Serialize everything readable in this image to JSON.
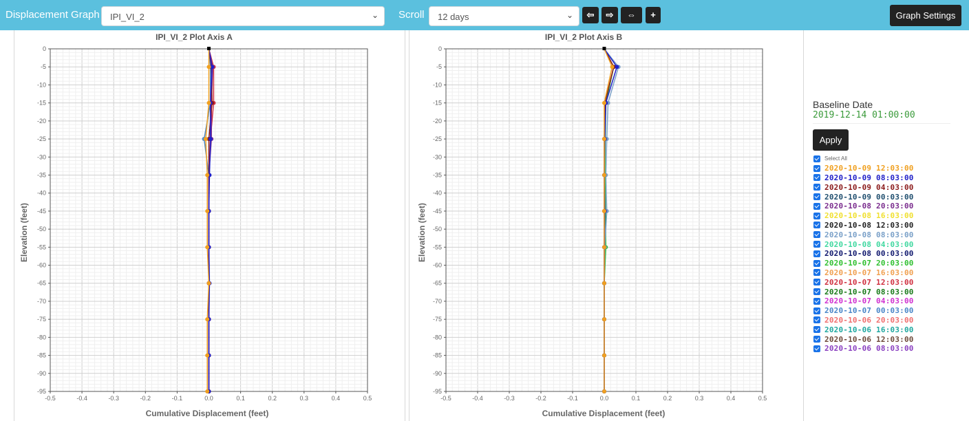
{
  "toolbar": {
    "title": "Displacement Graph",
    "sensor_select": "IPI_VI_2",
    "scroll_label": "Scroll",
    "scroll_select": "12 days",
    "nav_buttons": [
      "⇦",
      "⇨",
      "⇔",
      "+"
    ],
    "graph_settings": "Graph Settings"
  },
  "plots": [
    {
      "title": "IPI_VI_2 Plot Axis A",
      "xlabel": "Cumulative Displacement (feet)",
      "ylabel": "Elevation (feet)",
      "xticks": [
        "-0.5",
        "-0.4",
        "-0.3",
        "-0.2",
        "-0.1",
        "0.0",
        "0.1",
        "0.2",
        "0.3",
        "0.4",
        "0.5"
      ],
      "yticks": [
        "0",
        "-5",
        "-10",
        "-15",
        "-20",
        "-25",
        "-30",
        "-35",
        "-40",
        "-45",
        "-50",
        "-55",
        "-60",
        "-65",
        "-70",
        "-75",
        "-80",
        "-85",
        "-90",
        "-95"
      ]
    },
    {
      "title": "IPI_VI_2 Plot Axis B",
      "xlabel": "Cumulative Displacement (feet)",
      "ylabel": "Elevation (feet)",
      "xticks": [
        "-0.5",
        "-0.4",
        "-0.3",
        "-0.2",
        "-0.1",
        "0.0",
        "0.1",
        "0.2",
        "0.3",
        "0.4",
        "0.5"
      ],
      "yticks": [
        "0",
        "-5",
        "-10",
        "-15",
        "-20",
        "-25",
        "-30",
        "-35",
        "-40",
        "-45",
        "-50",
        "-55",
        "-60",
        "-65",
        "-70",
        "-75",
        "-80",
        "-85",
        "-90",
        "-95"
      ]
    }
  ],
  "chart_data": [
    {
      "type": "line",
      "title": "IPI_VI_2 Plot Axis A",
      "xlabel": "Cumulative Displacement (feet)",
      "ylabel": "Elevation (feet)",
      "xlim": [
        -0.5,
        0.5
      ],
      "ylim": [
        -95,
        0
      ],
      "grid": true,
      "series": [
        {
          "name": "2020-10-09 12:03:00",
          "color": "#f0a020",
          "x": [
            0.0,
            0.0,
            0.0,
            -0.01,
            -0.005,
            -0.005,
            -0.005,
            0.0,
            -0.005,
            -0.005,
            -0.005
          ],
          "y": [
            0,
            -5,
            -15,
            -25,
            -35,
            -45,
            -55,
            -65,
            -75,
            -85,
            -95
          ]
        },
        {
          "name": "2020-10-09 08:03:00",
          "color": "#2020c8",
          "x": [
            0.0,
            0.01,
            0.005,
            0.005,
            0.002,
            0.0,
            0.0,
            0.002,
            0.0,
            0.0,
            0.0
          ],
          "y": [
            0,
            -5,
            -15,
            -25,
            -35,
            -45,
            -55,
            -65,
            -75,
            -85,
            -95
          ]
        },
        {
          "name": "2020-10-09 04:03:00",
          "color": "#8b1a1a",
          "x": [
            0.0,
            0.008,
            0.01,
            0.0,
            0.0,
            0.0,
            0.0,
            0.0,
            0.0,
            0.0,
            0.0
          ],
          "y": [
            0,
            -5,
            -15,
            -25,
            -35,
            -45,
            -55,
            -65,
            -75,
            -85,
            -95
          ]
        },
        {
          "name": "2020-10-08 20:03:00",
          "color": "#7b2d8e",
          "x": [
            0.0,
            0.012,
            0.008,
            0.008,
            0.0,
            0.0,
            0.0,
            0.0,
            0.0,
            0.0,
            0.0
          ],
          "y": [
            0,
            -5,
            -15,
            -25,
            -35,
            -45,
            -55,
            -65,
            -75,
            -85,
            -95
          ]
        },
        {
          "name": "2020-10-07 12:03:00",
          "color": "#d03040",
          "x": [
            0.0,
            0.015,
            0.015,
            0.005,
            0.0,
            0.0,
            0.0,
            0.0,
            0.0,
            0.0,
            0.0
          ],
          "y": [
            0,
            -5,
            -15,
            -25,
            -35,
            -45,
            -55,
            -65,
            -75,
            -85,
            -95
          ]
        },
        {
          "name": "2020-10-07 00:03:00",
          "color": "#4a86c8",
          "x": [
            0.0,
            0.005,
            0.005,
            -0.015,
            0.0,
            0.0,
            0.0,
            0.0,
            0.0,
            0.0,
            0.0
          ],
          "y": [
            0,
            -5,
            -15,
            -25,
            -35,
            -45,
            -55,
            -65,
            -75,
            -85,
            -95
          ]
        }
      ]
    },
    {
      "type": "line",
      "title": "IPI_VI_2 Plot Axis B",
      "xlabel": "Cumulative Displacement (feet)",
      "ylabel": "Elevation (feet)",
      "xlim": [
        -0.5,
        0.5
      ],
      "ylim": [
        -95,
        0
      ],
      "grid": true,
      "series": [
        {
          "name": "2020-10-09 12:03:00",
          "color": "#f0a020",
          "x": [
            0.0,
            0.025,
            0.0,
            0.0,
            0.0,
            0.0,
            0.0,
            0.0,
            0.0,
            0.0,
            0.0
          ],
          "y": [
            0,
            -5,
            -15,
            -25,
            -35,
            -45,
            -55,
            -65,
            -75,
            -85,
            -95
          ]
        },
        {
          "name": "2020-10-09 08:03:00",
          "color": "#2020c8",
          "x": [
            0.0,
            0.04,
            0.005,
            0.002,
            0.0,
            0.002,
            0.0,
            0.0,
            0.0,
            0.0,
            0.0
          ],
          "y": [
            0,
            -5,
            -15,
            -25,
            -35,
            -45,
            -55,
            -65,
            -75,
            -85,
            -95
          ]
        },
        {
          "name": "2020-10-09 04:03:00",
          "color": "#8b1a1a",
          "x": [
            0.0,
            0.03,
            0.002,
            0.0,
            0.0,
            0.0,
            0.0,
            0.0,
            0.0,
            0.0,
            0.0
          ],
          "y": [
            0,
            -5,
            -15,
            -25,
            -35,
            -45,
            -55,
            -65,
            -75,
            -85,
            -95
          ]
        },
        {
          "name": "2020-10-08 08:03:00",
          "color": "#7aa0c8",
          "x": [
            0.0,
            0.045,
            0.012,
            0.008,
            0.005,
            0.008,
            0.002,
            0.0,
            0.0,
            0.0,
            0.0
          ],
          "y": [
            0,
            -5,
            -15,
            -25,
            -35,
            -45,
            -55,
            -65,
            -75,
            -85,
            -95
          ]
        },
        {
          "name": "2020-10-07 20:03:00",
          "color": "#30c030",
          "x": [
            0.0,
            0.03,
            0.005,
            0.003,
            0.002,
            0.004,
            0.005,
            0.0,
            0.0,
            0.0,
            0.0
          ],
          "y": [
            0,
            -5,
            -15,
            -25,
            -35,
            -45,
            -55,
            -65,
            -75,
            -85,
            -95
          ]
        }
      ]
    }
  ],
  "sidebar": {
    "baseline_label": "Baseline Date",
    "baseline_value": "2019-12-14 01:00:00",
    "apply": "Apply",
    "select_all": "Select All",
    "dates": [
      {
        "label": "2020-10-09 12:03:00",
        "color": "#f0a020"
      },
      {
        "label": "2020-10-09 08:03:00",
        "color": "#2020c8"
      },
      {
        "label": "2020-10-09 04:03:00",
        "color": "#8b1a1a"
      },
      {
        "label": "2020-10-09 00:03:00",
        "color": "#1f4e6e"
      },
      {
        "label": "2020-10-08 20:03:00",
        "color": "#7b2d8e"
      },
      {
        "label": "2020-10-08 16:03:00",
        "color": "#f0e030"
      },
      {
        "label": "2020-10-08 12:03:00",
        "color": "#222222"
      },
      {
        "label": "2020-10-08 08:03:00",
        "color": "#7aa0c8"
      },
      {
        "label": "2020-10-08 04:03:00",
        "color": "#40d8a0"
      },
      {
        "label": "2020-10-08 00:03:00",
        "color": "#10186e"
      },
      {
        "label": "2020-10-07 20:03:00",
        "color": "#30c030"
      },
      {
        "label": "2020-10-07 16:03:00",
        "color": "#f0a050"
      },
      {
        "label": "2020-10-07 12:03:00",
        "color": "#d03040"
      },
      {
        "label": "2020-10-07 08:03:00",
        "color": "#1a7a1a"
      },
      {
        "label": "2020-10-07 04:03:00",
        "color": "#d030d0"
      },
      {
        "label": "2020-10-07 00:03:00",
        "color": "#4a86c8"
      },
      {
        "label": "2020-10-06 20:03:00",
        "color": "#f07070"
      },
      {
        "label": "2020-10-06 16:03:00",
        "color": "#20a8a0"
      },
      {
        "label": "2020-10-06 12:03:00",
        "color": "#6e4a3a"
      },
      {
        "label": "2020-10-06 08:03:00",
        "color": "#8a40c0"
      }
    ]
  }
}
